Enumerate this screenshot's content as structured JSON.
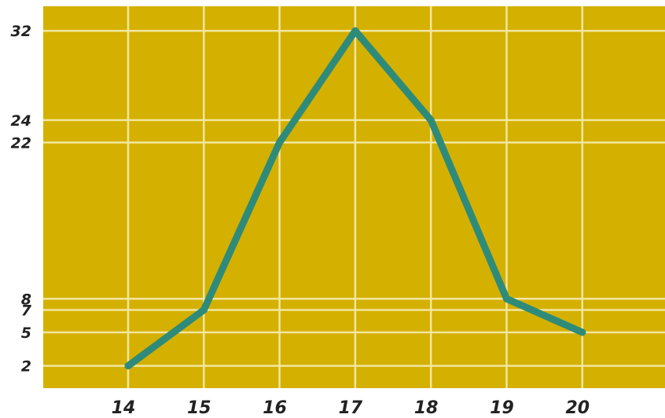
{
  "chart_data": {
    "type": "line",
    "title": "",
    "xlabel": "",
    "ylabel": "",
    "x": [
      14,
      15,
      16,
      17,
      18,
      19,
      20
    ],
    "series": [
      {
        "values": [
          2,
          7,
          22,
          32,
          24,
          8,
          5
        ]
      }
    ],
    "x_ticks": [
      "14",
      "15",
      "16",
      "17",
      "18",
      "19",
      "20"
    ],
    "y_ticks": [
      2,
      5,
      7,
      8,
      22,
      24,
      32
    ],
    "y_tick_labels": [
      "2",
      "5",
      "7",
      "8",
      "22",
      "24",
      "32"
    ],
    "ylim": [
      0,
      33
    ],
    "xlim": [
      13,
      21
    ],
    "grid": true,
    "legend": "none",
    "colors": {
      "background": "#d4b000",
      "grid": "#f2e6a0",
      "line": "#2e8b7a",
      "labels": "#222222"
    }
  }
}
